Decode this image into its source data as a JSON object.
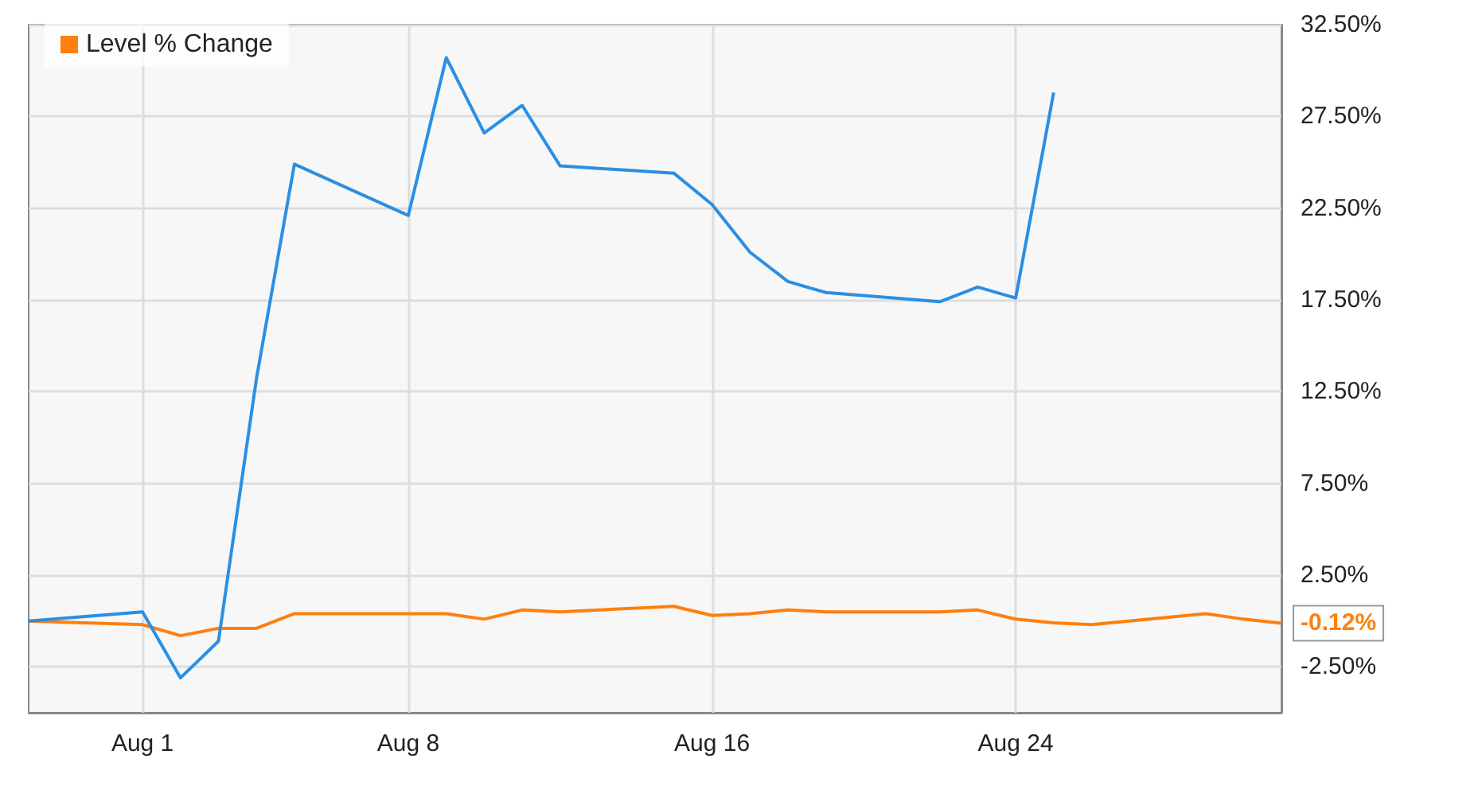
{
  "chart_data": {
    "type": "line",
    "x": [
      "--07-29",
      "--08-01",
      "--08-02",
      "--08-03",
      "--08-04",
      "--08-05",
      "--08-08",
      "--08-09",
      "--08-10",
      "--08-11",
      "--08-12",
      "--08-15",
      "--08-16",
      "--08-17",
      "--08-18",
      "--08-19",
      "--08-22",
      "--08-23",
      "--08-24",
      "--08-25",
      "--08-26",
      "--08-29",
      "--08-30",
      "--08-31"
    ],
    "series": [
      {
        "color": "#2b8fe3",
        "values": [
          0,
          0.5,
          -3.1,
          -1.1,
          13.2,
          24.9,
          22.1,
          30.7,
          26.6,
          28.1,
          24.8,
          24.4,
          22.7,
          20.1,
          18.5,
          17.9,
          17.4,
          18.2,
          17.6,
          28.8,
          null,
          null,
          null,
          null
        ]
      },
      {
        "name": "Level % Change",
        "color": "#ff7f0e",
        "values": [
          0,
          -0.2,
          -0.8,
          -0.4,
          -0.4,
          0.4,
          0.4,
          0.4,
          0.1,
          0.6,
          0.5,
          0.8,
          0.3,
          0.4,
          0.6,
          0.5,
          0.5,
          0.6,
          0.1,
          -0.1,
          -0.2,
          0.4,
          0.1,
          -0.12
        ],
        "value_labels": [
          null,
          null,
          null,
          null,
          null,
          null,
          null,
          null,
          null,
          null,
          null,
          null,
          null,
          null,
          null,
          null,
          null,
          null,
          null,
          null,
          null,
          null,
          null,
          "-0.12%"
        ]
      }
    ],
    "xlim": [
      "--07-29",
      "--08-31"
    ],
    "xticks": [
      {
        "value": "--08-01",
        "label": "Aug 1"
      },
      {
        "value": "--08-08",
        "label": "Aug 8"
      },
      {
        "value": "--08-16",
        "label": "Aug 16"
      },
      {
        "value": "--08-24",
        "label": "Aug 24"
      }
    ],
    "ylim": [
      -5,
      32.5
    ],
    "yticks": [
      {
        "value": -2.5,
        "label": "-2.50%"
      },
      {
        "value": 2.5,
        "label": "2.50%"
      },
      {
        "value": 7.5,
        "label": "7.50%"
      },
      {
        "value": 12.5,
        "label": "12.50%"
      },
      {
        "value": 17.5,
        "label": "17.50%"
      },
      {
        "value": 22.5,
        "label": "22.50%"
      },
      {
        "value": 27.5,
        "label": "27.50%"
      },
      {
        "value": 32.5,
        "label": "32.50%"
      }
    ],
    "grid": true,
    "legend": "top left",
    "marker": "none",
    "line_style": "solid"
  }
}
